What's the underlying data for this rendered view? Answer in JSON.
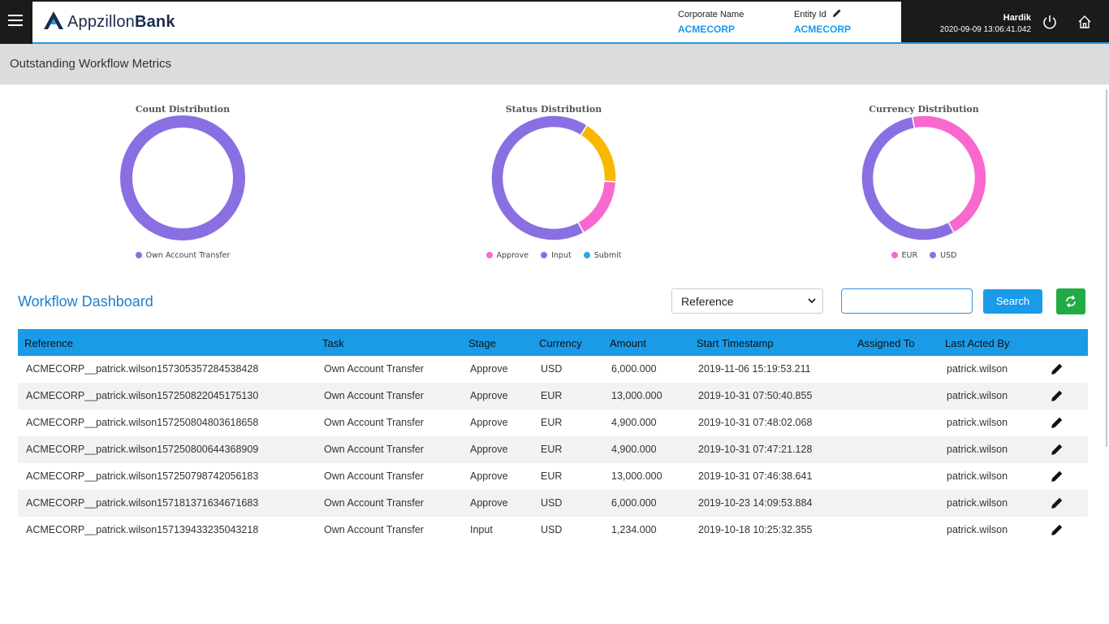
{
  "header": {
    "brand_light": "Appzillon",
    "brand_bold": "Bank",
    "corporate_name_label": "Corporate Name",
    "corporate_name_value": "ACMECORP",
    "entity_id_label": "Entity Id",
    "entity_id_value": "ACMECORP",
    "user_name": "Hardik",
    "timestamp": "2020-09-09 13:06:41.042",
    "accent_color": "#1a9be8"
  },
  "page_title": "Outstanding Workflow Metrics",
  "charts": {
    "colors": {
      "purple": "#8a6fe3",
      "yellow": "#f9b800",
      "pink": "#f868cf",
      "blue": "#29a4f0"
    },
    "count": {
      "title": "Count Distribution",
      "legend": [
        "Own Account Transfer"
      ]
    },
    "status": {
      "title": "Status Distribution",
      "legend": [
        "Approve",
        "Input",
        "Submit"
      ]
    },
    "currency": {
      "title": "Currency Distribution",
      "legend": [
        "EUR",
        "USD"
      ]
    }
  },
  "chart_data": [
    {
      "type": "pie",
      "title": "Count Distribution",
      "categories": [
        "Own Account Transfer"
      ],
      "values": [
        100
      ]
    },
    {
      "type": "pie",
      "title": "Status Distribution",
      "categories": [
        "Approve",
        "Input",
        "Submit"
      ],
      "values": [
        67,
        17,
        16
      ]
    },
    {
      "type": "pie",
      "title": "Currency Distribution",
      "categories": [
        "EUR",
        "USD"
      ],
      "values": [
        45,
        55
      ]
    }
  ],
  "dashboard": {
    "title": "Workflow Dashboard",
    "filter_selected": "Reference",
    "search_value": "",
    "search_label": "Search"
  },
  "table": {
    "columns": [
      "Reference",
      "Task",
      "Stage",
      "Currency",
      "Amount",
      "Start Timestamp",
      "Assigned To",
      "Last Acted By"
    ],
    "rows": [
      [
        "ACMECORP__patrick.wilson157305357284538428",
        "Own Account Transfer",
        "Approve",
        "USD",
        "6,000.000",
        "2019-11-06 15:19:53.211",
        "",
        "patrick.wilson"
      ],
      [
        "ACMECORP__patrick.wilson157250822045175130",
        "Own Account Transfer",
        "Approve",
        "EUR",
        "13,000.000",
        "2019-10-31 07:50:40.855",
        "",
        "patrick.wilson"
      ],
      [
        "ACMECORP__patrick.wilson157250804803618658",
        "Own Account Transfer",
        "Approve",
        "EUR",
        "4,900.000",
        "2019-10-31 07:48:02.068",
        "",
        "patrick.wilson"
      ],
      [
        "ACMECORP__patrick.wilson157250800644368909",
        "Own Account Transfer",
        "Approve",
        "EUR",
        "4,900.000",
        "2019-10-31 07:47:21.128",
        "",
        "patrick.wilson"
      ],
      [
        "ACMECORP__patrick.wilson157250798742056183",
        "Own Account Transfer",
        "Approve",
        "EUR",
        "13,000.000",
        "2019-10-31 07:46:38.641",
        "",
        "patrick.wilson"
      ],
      [
        "ACMECORP__patrick.wilson157181371634671683",
        "Own Account Transfer",
        "Approve",
        "USD",
        "6,000.000",
        "2019-10-23 14:09:53.884",
        "",
        "patrick.wilson"
      ],
      [
        "ACMECORP__patrick.wilson157139433235043218",
        "Own Account Transfer",
        "Input",
        "USD",
        "1,234.000",
        "2019-10-18 10:25:32.355",
        "",
        "patrick.wilson"
      ]
    ]
  }
}
